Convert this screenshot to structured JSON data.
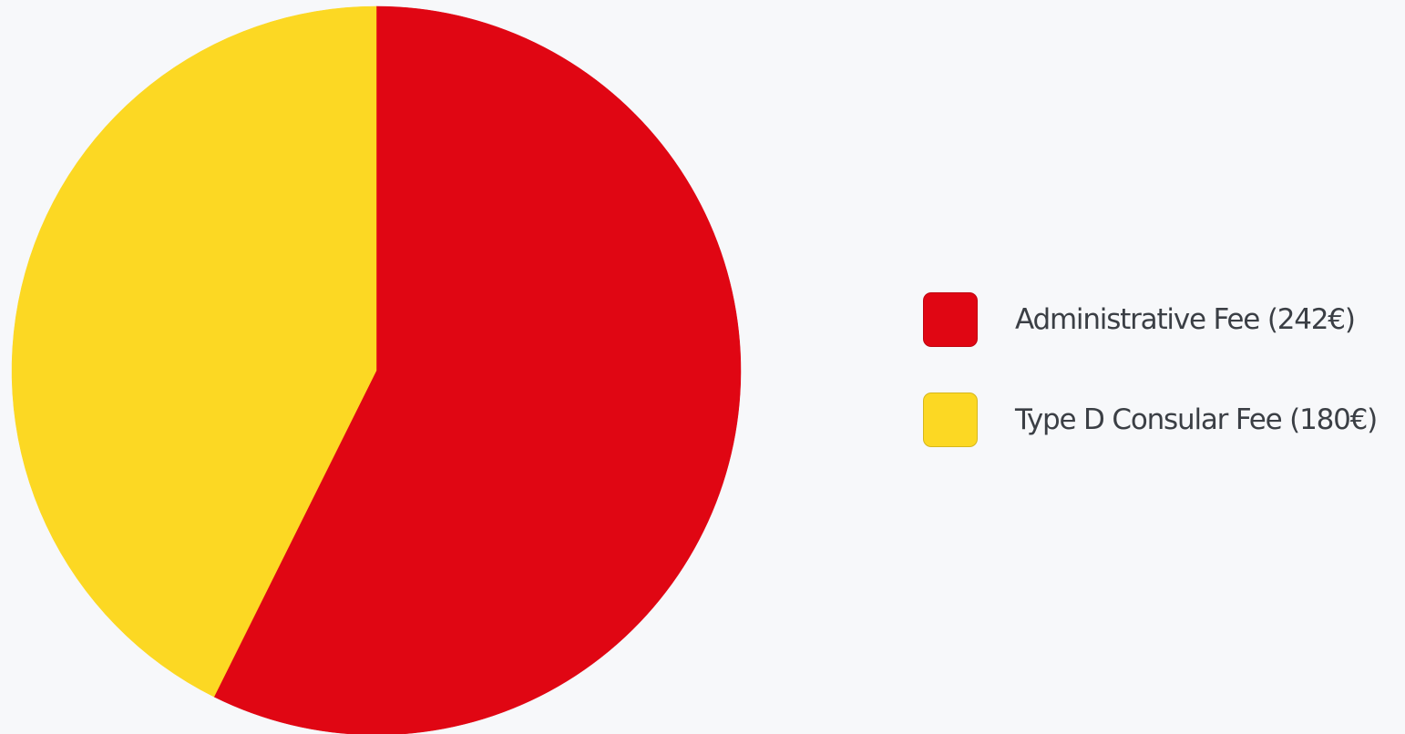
{
  "chart_data": {
    "type": "pie",
    "slices": [
      {
        "label": "Administrative Fee (242€)",
        "value": 242,
        "color": "#e00613"
      },
      {
        "label": "Type D Consular Fee (180€)",
        "value": 180,
        "color": "#fcd823"
      }
    ],
    "start_angle": "12 o'clock",
    "direction": "clockwise",
    "legend_position": "right",
    "background": "#f7f8fa"
  }
}
